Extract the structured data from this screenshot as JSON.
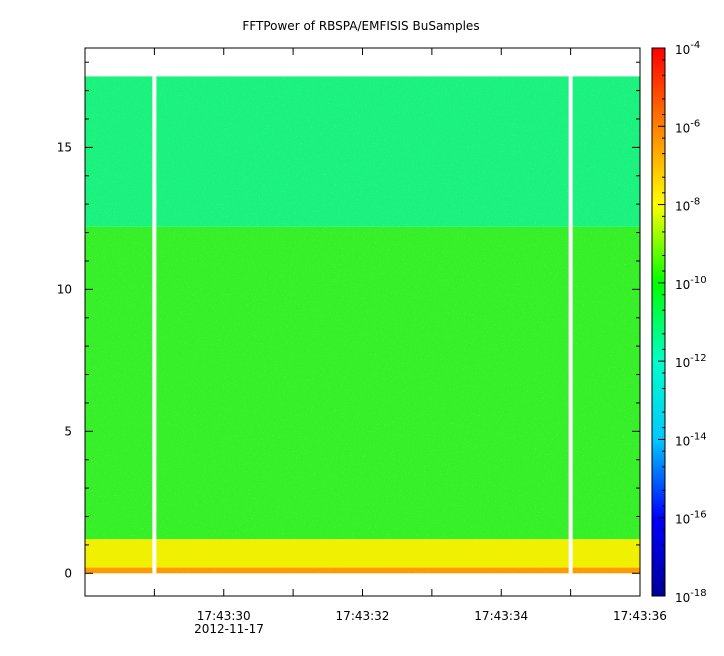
{
  "chart_data": {
    "type": "heatmap",
    "title": "FFTPower of RBSPA/EMFISIS  BuSamples",
    "xlabel": "",
    "ylabel": "",
    "x_ticks": [
      {
        "value": 29,
        "label": ""
      },
      {
        "value": 30,
        "label": "17:43:30"
      },
      {
        "value": 31,
        "label": ""
      },
      {
        "value": 32,
        "label": "17:43:32"
      },
      {
        "value": 33,
        "label": ""
      },
      {
        "value": 34,
        "label": "17:43:34"
      },
      {
        "value": 35,
        "label": ""
      },
      {
        "value": 36,
        "label": "17:43:36"
      }
    ],
    "x_date_label": "2012-11-17",
    "xlim": [
      "17:43:28.0",
      "17:43:36.0"
    ],
    "y_ticks": [
      0,
      5,
      10,
      15
    ],
    "ylim": [
      -0.8,
      18.5
    ],
    "data_y_range": [
      0,
      17.5
    ],
    "data_gaps": [
      "17:43:29.0",
      "17:43:35.0"
    ],
    "colorbar": {
      "scale": "log",
      "zlim": [
        1e-18,
        0.0001
      ],
      "tick_exponents": [
        -4,
        -6,
        -8,
        -10,
        -12,
        -14,
        -16,
        -18
      ],
      "tick_base": "10",
      "colormap": [
        "#00009a",
        "#0000ff",
        "#00c8ff",
        "#00ffc8",
        "#00ff00",
        "#ffff00",
        "#ff8000",
        "#ff0000"
      ]
    },
    "bands": [
      {
        "y_from": 12.2,
        "y_to": 17.5,
        "log10_power": -11.2,
        "color": "#1af27f"
      },
      {
        "y_from": 1.2,
        "y_to": 12.2,
        "log10_power": -10.2,
        "color": "#35f028"
      },
      {
        "y_from": 0.2,
        "y_to": 1.2,
        "log10_power": -8.3,
        "color": "#f0f000"
      },
      {
        "y_from": 0.0,
        "y_to": 0.2,
        "log10_power": -7.2,
        "color": "#ff9900"
      }
    ]
  }
}
